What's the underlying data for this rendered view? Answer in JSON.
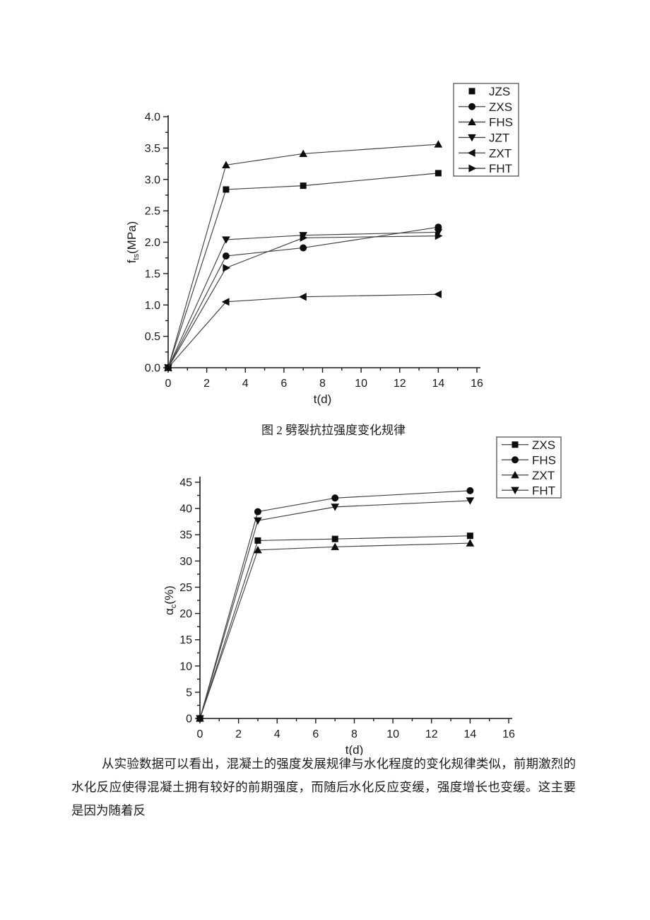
{
  "page": {
    "background": "#ffffff",
    "caption": "图 2 劈裂抗拉强度变化规律",
    "paragraph": "从实验数据可以看出，混凝土的强度发展规律与水化程度的变化规律类似，前期激烈的水化反应使得混凝土拥有较好的前期强度，而随后水化反应变缓，强度增长也变缓。这主要是因为随着反"
  },
  "colors": {
    "axis": "#1a1a1a",
    "line": "#404040",
    "marker": "#0d0d0d",
    "text": "#1a1a1a",
    "legend_border": "#555555",
    "legend_bg": "#ffffff"
  },
  "chart_data": [
    {
      "type": "line",
      "title": "",
      "xlabel": "t(d)",
      "ylabel": {
        "pre": "f",
        "sub": "ts",
        "post": "(MPa)"
      },
      "xlim": [
        0,
        16
      ],
      "ylim": [
        0,
        4
      ],
      "xticks": [
        0,
        2,
        4,
        6,
        8,
        10,
        12,
        14,
        16
      ],
      "xtick_labels": [
        "0",
        "2",
        "4",
        "6",
        "8",
        "10",
        "12",
        "14",
        "16"
      ],
      "yticks": [
        0,
        0.5,
        1,
        1.5,
        2,
        2.5,
        3,
        3.5,
        4
      ],
      "ytick_labels": [
        "0.0",
        "0.5",
        "1.0",
        "1.5",
        "2.0",
        "2.5",
        "3.0",
        "3.5",
        "4.0"
      ],
      "x_minor_step": 1,
      "y_minor_step": 0.25,
      "grid": false,
      "legend_position": "outside-top-right",
      "x": [
        0,
        3,
        7,
        14
      ],
      "series": [
        {
          "name": "JZS",
          "marker": "square",
          "legend_line": false,
          "values": [
            0,
            2.84,
            2.9,
            3.1
          ]
        },
        {
          "name": "ZXS",
          "marker": "circle",
          "legend_line": true,
          "values": [
            0,
            1.78,
            1.91,
            2.24
          ]
        },
        {
          "name": "FHS",
          "marker": "triangle-up",
          "legend_line": true,
          "values": [
            0,
            3.23,
            3.41,
            3.56
          ]
        },
        {
          "name": "JZT",
          "marker": "triangle-down",
          "legend_line": true,
          "values": [
            0,
            2.04,
            2.11,
            2.16
          ]
        },
        {
          "name": "ZXT",
          "marker": "triangle-left",
          "legend_line": true,
          "values": [
            0,
            1.05,
            1.13,
            1.17
          ]
        },
        {
          "name": "FHT",
          "marker": "triangle-right",
          "legend_line": true,
          "values": [
            0,
            1.59,
            2.07,
            2.1
          ]
        }
      ]
    },
    {
      "type": "line",
      "title": "",
      "xlabel": "t(d)",
      "ylabel": {
        "pre": "α",
        "sub": "c",
        "post": "(%)"
      },
      "xlim": [
        0,
        16
      ],
      "ylim": [
        0,
        45
      ],
      "xticks": [
        0,
        2,
        4,
        6,
        8,
        10,
        12,
        14,
        16
      ],
      "xtick_labels": [
        "0",
        "2",
        "4",
        "6",
        "8",
        "10",
        "12",
        "14",
        "16"
      ],
      "yticks": [
        0,
        5,
        10,
        15,
        20,
        25,
        30,
        35,
        40,
        45
      ],
      "ytick_labels": [
        "0",
        "5",
        "10",
        "15",
        "20",
        "25",
        "30",
        "35",
        "40",
        "45"
      ],
      "x_minor_step": 1,
      "y_minor_step": 2.5,
      "grid": false,
      "legend_position": "outside-top-right",
      "x": [
        0,
        3,
        7,
        14
      ],
      "series": [
        {
          "name": "ZXS",
          "marker": "square",
          "legend_line": true,
          "values": [
            0,
            33.9,
            34.2,
            34.8
          ]
        },
        {
          "name": "FHS",
          "marker": "circle",
          "legend_line": true,
          "values": [
            0,
            39.4,
            42.0,
            43.4
          ]
        },
        {
          "name": "ZXT",
          "marker": "triangle-up",
          "legend_line": true,
          "values": [
            0,
            32.1,
            32.7,
            33.4
          ]
        },
        {
          "name": "FHT",
          "marker": "triangle-down",
          "legend_line": true,
          "values": [
            0,
            37.7,
            40.3,
            41.5
          ]
        }
      ]
    }
  ]
}
